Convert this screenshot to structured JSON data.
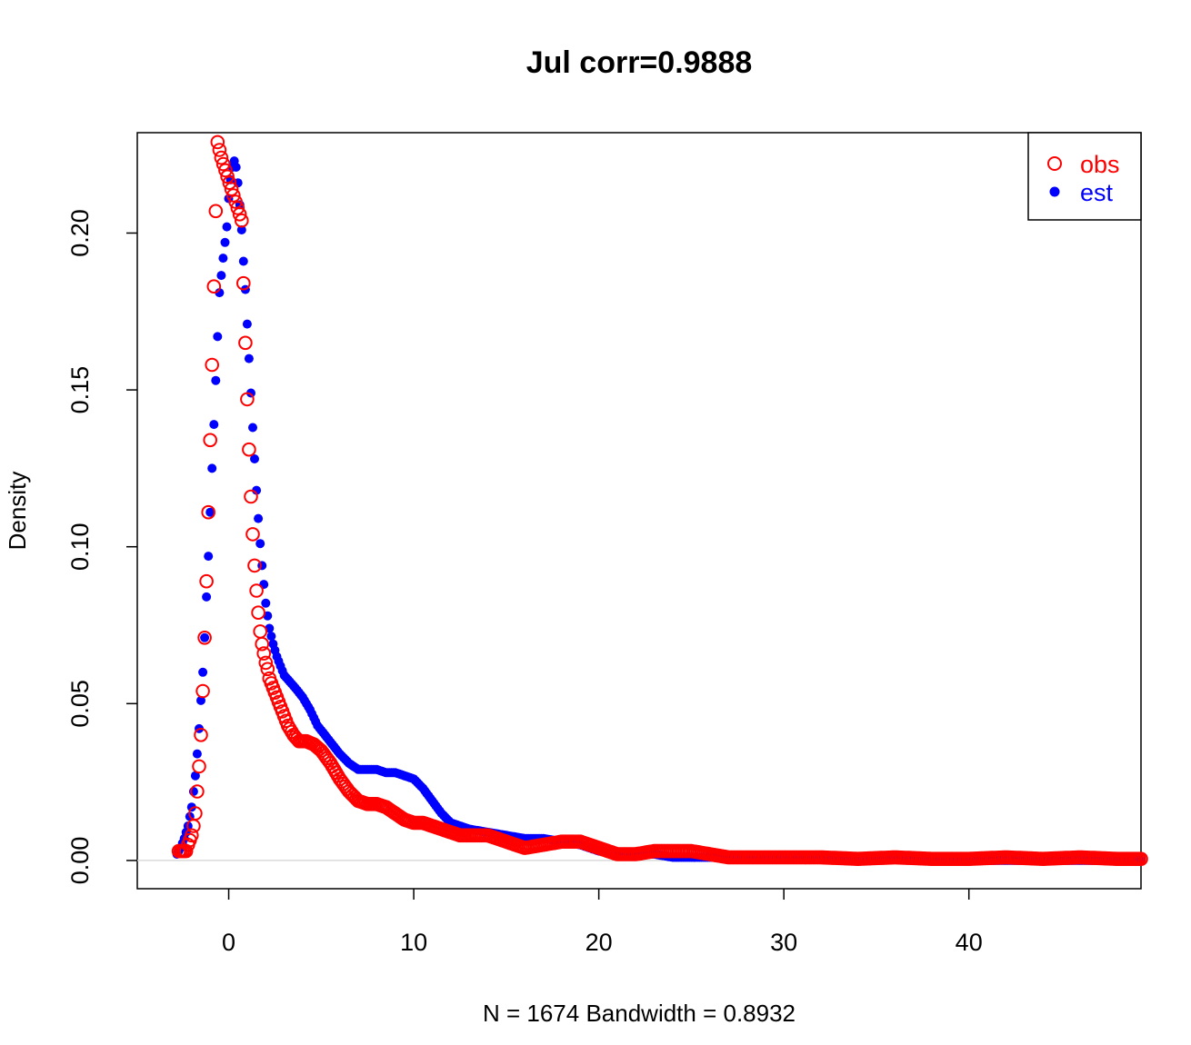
{
  "chart_data": {
    "type": "scatter",
    "title": "Jul corr=0.9888",
    "xlabel": "N = 1674   Bandwidth = 0.8932",
    "ylabel": "Density",
    "xlim": [
      -4.94,
      49.3
    ],
    "ylim": [
      -0.009,
      0.232
    ],
    "x_ticks": [
      0,
      10,
      20,
      30,
      40
    ],
    "x_tick_labels": [
      "0",
      "10",
      "20",
      "30",
      "40"
    ],
    "y_ticks": [
      0.0,
      0.05,
      0.1,
      0.15,
      0.2
    ],
    "y_tick_labels": [
      "0.00",
      "0.05",
      "0.10",
      "0.15",
      "0.20"
    ],
    "zero_line": true,
    "legend": {
      "position": "top-right",
      "entries": [
        "obs",
        "est"
      ]
    },
    "colors": {
      "obs": "#ff0000",
      "est": "#0000ff"
    },
    "series": [
      {
        "name": "obs",
        "marker": "open-circle",
        "color": "#ff0000",
        "x": [
          -2.7,
          -2.3,
          -2.2,
          -2.0,
          -1.9,
          -1.8,
          -1.7,
          -1.6,
          -1.5,
          -1.4,
          -1.3,
          -1.2,
          -1.1,
          -1.0,
          -0.9,
          -0.8,
          -0.7,
          -0.6,
          -0.4,
          0.7,
          0.8,
          0.9,
          1.0,
          1.1,
          1.2,
          1.3,
          1.4,
          1.5,
          1.6,
          1.7,
          1.8,
          1.9,
          2.0,
          2.1,
          2.2,
          2.4,
          2.6,
          2.8,
          3.0,
          3.2,
          3.5,
          3.8,
          4.2,
          4.6,
          5.0,
          5.5,
          6.0,
          6.5,
          7.0,
          7.5,
          8.0,
          8.5,
          9.0,
          9.5,
          10.0,
          10.5,
          11.0,
          11.5,
          12.0,
          12.5,
          13.0,
          14.0,
          15.0,
          16.0,
          17.0,
          18.0,
          19.0,
          20.0,
          21.0,
          22.0,
          23.0,
          24.0,
          25.0,
          26.0,
          27.0,
          28.0,
          29.0,
          30.0,
          32.0,
          34.0,
          36.0,
          38.0,
          40.0,
          42.0,
          44.0,
          46.0,
          48.0,
          49.3
        ],
        "y": [
          0.003,
          0.003,
          0.005,
          0.008,
          0.011,
          0.015,
          0.022,
          0.03,
          0.04,
          0.054,
          0.071,
          0.089,
          0.111,
          0.134,
          0.158,
          0.183,
          0.207,
          0.229,
          0.224,
          0.204,
          0.184,
          0.165,
          0.147,
          0.131,
          0.116,
          0.104,
          0.094,
          0.086,
          0.079,
          0.073,
          0.069,
          0.066,
          0.063,
          0.061,
          0.058,
          0.055,
          0.052,
          0.049,
          0.046,
          0.043,
          0.04,
          0.038,
          0.038,
          0.037,
          0.035,
          0.031,
          0.026,
          0.022,
          0.019,
          0.018,
          0.018,
          0.017,
          0.015,
          0.013,
          0.012,
          0.012,
          0.011,
          0.01,
          0.009,
          0.008,
          0.008,
          0.008,
          0.006,
          0.004,
          0.005,
          0.006,
          0.006,
          0.004,
          0.002,
          0.002,
          0.003,
          0.003,
          0.003,
          0.002,
          0.001,
          0.001,
          0.001,
          0.001,
          0.001,
          0.0005,
          0.001,
          0.0005,
          0.0005,
          0.001,
          0.0005,
          0.001,
          0.0005,
          0.0005
        ]
      },
      {
        "name": "est",
        "marker": "filled-dot",
        "color": "#0000ff",
        "x": [
          -2.8,
          -2.6,
          -2.4,
          -2.2,
          -2.1,
          -2.0,
          -1.9,
          -1.8,
          -1.7,
          -1.6,
          -1.5,
          -1.4,
          -1.3,
          -1.2,
          -1.1,
          -1.0,
          -0.9,
          -0.8,
          -0.7,
          -0.6,
          -0.5,
          -0.3,
          -0.1,
          0.0,
          0.1,
          0.2,
          0.3,
          0.4,
          0.5,
          0.6,
          0.7,
          0.8,
          0.9,
          1.0,
          1.1,
          1.2,
          1.3,
          1.4,
          1.5,
          1.6,
          1.7,
          1.8,
          1.9,
          2.0,
          2.2,
          2.4,
          2.6,
          2.8,
          3.0,
          3.3,
          3.6,
          4.0,
          4.4,
          4.8,
          5.2,
          5.6,
          6.0,
          6.5,
          7.0,
          7.5,
          8.0,
          8.5,
          9.0,
          9.5,
          10.0,
          10.5,
          11.0,
          11.5,
          12.0,
          13.0,
          14.0,
          15.0,
          16.0,
          17.0,
          18.0,
          19.0,
          20.0,
          21.0,
          22.0,
          23.0,
          24.0,
          25.0,
          26.0,
          27.0,
          28.0,
          30.0,
          32.0,
          34.0,
          36.0,
          38.0,
          40.0,
          42.0,
          44.0,
          46.0,
          48.0,
          49.3
        ],
        "y": [
          0.002,
          0.004,
          0.007,
          0.011,
          0.014,
          0.017,
          0.022,
          0.027,
          0.034,
          0.042,
          0.051,
          0.06,
          0.071,
          0.084,
          0.097,
          0.111,
          0.125,
          0.139,
          0.153,
          0.167,
          0.181,
          0.192,
          0.202,
          0.211,
          0.217,
          0.221,
          0.223,
          0.221,
          0.216,
          0.209,
          0.201,
          0.191,
          0.182,
          0.171,
          0.16,
          0.149,
          0.138,
          0.128,
          0.118,
          0.109,
          0.101,
          0.094,
          0.088,
          0.082,
          0.074,
          0.069,
          0.065,
          0.062,
          0.059,
          0.057,
          0.055,
          0.052,
          0.048,
          0.043,
          0.04,
          0.037,
          0.034,
          0.031,
          0.029,
          0.029,
          0.029,
          0.028,
          0.028,
          0.027,
          0.026,
          0.023,
          0.019,
          0.015,
          0.012,
          0.01,
          0.009,
          0.008,
          0.007,
          0.007,
          0.006,
          0.005,
          0.003,
          0.002,
          0.002,
          0.002,
          0.001,
          0.001,
          0.001,
          0.001,
          0.0005,
          0.0005,
          0.0005,
          0.0005,
          0.0005,
          0.0005,
          0.0,
          0.0,
          0.0,
          0.0,
          0.0,
          0.0
        ]
      }
    ]
  }
}
